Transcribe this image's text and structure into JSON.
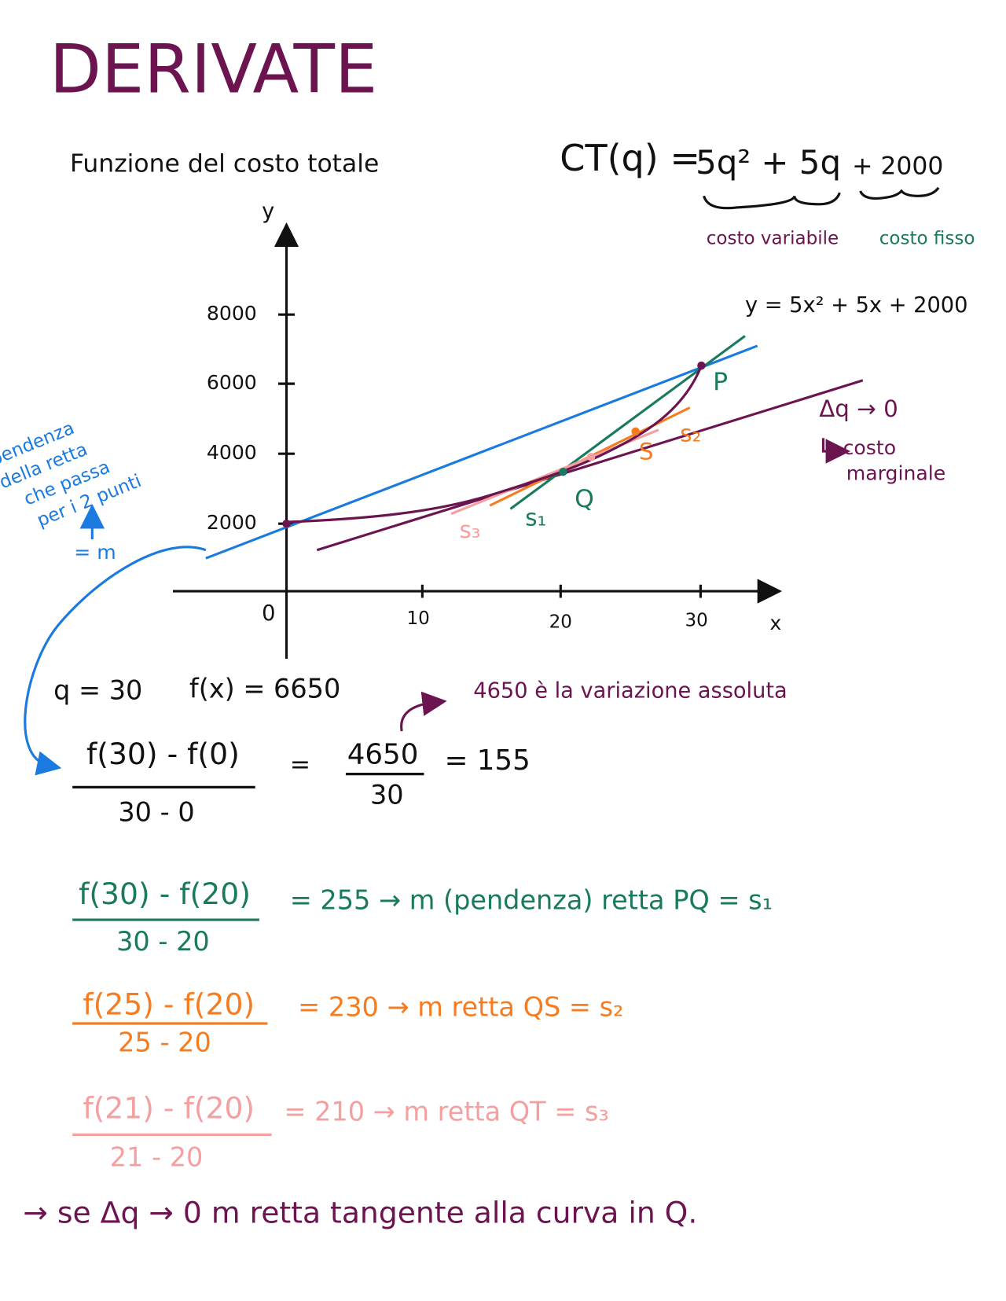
{
  "header": {
    "title": "DERIVATE",
    "subtitle": "Funzione del costo totale"
  },
  "formula": {
    "lhs": "CT(q) =",
    "variable_part": "5q² + 5q",
    "fixed_part": "+ 2000",
    "variable_label": "costo variabile",
    "fixed_label": "costo fisso"
  },
  "graph": {
    "y_label": "y",
    "x_label": "x",
    "origin": "0",
    "y_ticks": [
      "2000",
      "4000",
      "6000",
      "8000"
    ],
    "x_ticks": [
      "10",
      "20",
      "30"
    ],
    "curve_label": "y = 5x² + 5x + 2000",
    "points": [
      "P",
      "Q",
      "S"
    ],
    "lines": [
      "s₁",
      "s₂",
      "s₃"
    ],
    "delta_note": "Δq → 0",
    "marginal_note": [
      "costo",
      "marginale"
    ],
    "side_note": [
      "pendenza",
      "della retta",
      "che passa",
      "per i 2 punti"
    ],
    "m_note": "= m"
  },
  "values": {
    "q": "q = 30",
    "fx": "f(x) = 6650",
    "note": "4650 è la variazione assoluta"
  },
  "equations": [
    {
      "numerator": "f(30) - f(0)",
      "denominator": "30 - 0",
      "equals": "=",
      "numerator2": "4650",
      "denominator2": "30",
      "result": "= 155"
    },
    {
      "numerator": "f(30) - f(20)",
      "denominator": "30 - 20",
      "result": "= 255 → m (pendenza) retta PQ = s₁"
    },
    {
      "numerator": "f(25) - f(20)",
      "denominator": "25 - 20",
      "result": "= 230 → m retta QS = s₂"
    },
    {
      "numerator": "f(21) - f(20)",
      "denominator": "21 - 20",
      "result": "= 210 → m retta QT = s₃"
    }
  ],
  "conclusion": "→ se Δq → 0   m retta tangente alla curva in Q."
}
